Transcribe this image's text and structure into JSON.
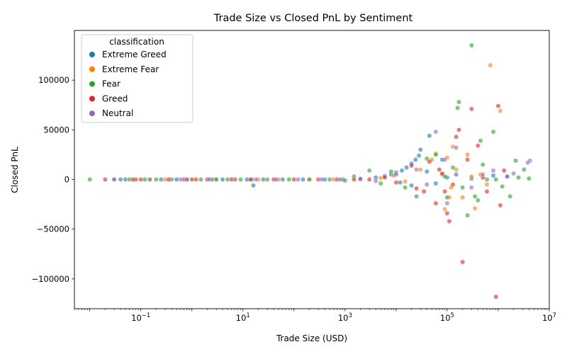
{
  "chart_data": {
    "type": "scatter",
    "title": "Trade Size vs Closed PnL by Sentiment",
    "xlabel": "Trade Size (USD)",
    "ylabel": "Closed PnL",
    "xscale": "log",
    "xlim": [
      0.005,
      10000000
    ],
    "ylim": [
      -130000,
      150000
    ],
    "x_ticks": [
      {
        "value": 0.1,
        "base": "10",
        "exp": "−1"
      },
      {
        "value": 10,
        "base": "10",
        "exp": "1"
      },
      {
        "value": 1000,
        "base": "10",
        "exp": "3"
      },
      {
        "value": 100000,
        "base": "10",
        "exp": "5"
      },
      {
        "value": 10000000,
        "base": "10",
        "exp": "7"
      }
    ],
    "y_ticks": [
      {
        "value": 100000,
        "label": "100000"
      },
      {
        "value": 50000,
        "label": "50000"
      },
      {
        "value": 0,
        "label": "0"
      },
      {
        "value": -50000,
        "label": "−50000"
      },
      {
        "value": -100000,
        "label": "−100000"
      }
    ],
    "grid": false,
    "legend": {
      "title": "classification",
      "position": "top-left"
    },
    "series": [
      {
        "name": "Extreme Greed",
        "color": "#1f77b4",
        "points": [
          [
            0.04,
            0
          ],
          [
            0.05,
            0
          ],
          [
            0.08,
            0
          ],
          [
            0.25,
            0
          ],
          [
            0.5,
            0
          ],
          [
            1,
            0
          ],
          [
            2.5,
            0
          ],
          [
            4,
            0
          ],
          [
            12,
            0
          ],
          [
            16,
            -6000
          ],
          [
            25,
            0
          ],
          [
            60,
            0
          ],
          [
            150,
            0
          ],
          [
            400,
            0
          ],
          [
            900,
            0
          ],
          [
            2000,
            1000
          ],
          [
            4000,
            2000
          ],
          [
            6000,
            3500
          ],
          [
            8000,
            5000
          ],
          [
            10000,
            7000
          ],
          [
            13000,
            9000
          ],
          [
            16000,
            12000
          ],
          [
            20000,
            16000
          ],
          [
            24000,
            20000
          ],
          [
            28000,
            24000
          ],
          [
            30000,
            30000
          ],
          [
            45000,
            44000
          ],
          [
            12000,
            -3000
          ],
          [
            20000,
            -6000
          ],
          [
            40000,
            8000
          ],
          [
            60000,
            -4000
          ],
          [
            80000,
            20000
          ],
          [
            100000,
            2000
          ],
          [
            150000,
            5000
          ],
          [
            300000,
            1000
          ],
          [
            800000,
            4000
          ],
          [
            1500000,
            3000
          ]
        ]
      },
      {
        "name": "Extreme Fear",
        "color": "#ff7f0e",
        "points": [
          [
            0.08,
            0
          ],
          [
            0.15,
            0
          ],
          [
            0.3,
            0
          ],
          [
            1,
            0
          ],
          [
            3,
            0
          ],
          [
            6,
            0
          ],
          [
            20,
            0
          ],
          [
            50,
            0
          ],
          [
            200,
            0
          ],
          [
            600,
            0
          ],
          [
            2000,
            0
          ],
          [
            5000,
            1500
          ],
          [
            9000,
            4000
          ],
          [
            15000,
            -2000
          ],
          [
            30000,
            10000
          ],
          [
            50000,
            20000
          ],
          [
            60000,
            26000
          ],
          [
            90000,
            -30000
          ],
          [
            100000,
            22000
          ],
          [
            110000,
            -18000
          ],
          [
            130000,
            33000
          ],
          [
            150000,
            10000
          ],
          [
            200000,
            -18000
          ],
          [
            250000,
            25000
          ],
          [
            350000,
            -29000
          ],
          [
            450000,
            5000
          ],
          [
            700000,
            115000
          ],
          [
            1100000,
            69000
          ],
          [
            80000,
            5000
          ],
          [
            120000,
            -8000
          ],
          [
            300000,
            3000
          ],
          [
            600000,
            -5000
          ]
        ]
      },
      {
        "name": "Fear",
        "color": "#2ca02c",
        "points": [
          [
            0.01,
            0
          ],
          [
            0.03,
            0
          ],
          [
            0.06,
            0
          ],
          [
            0.12,
            0
          ],
          [
            0.2,
            0
          ],
          [
            0.4,
            0
          ],
          [
            0.8,
            0
          ],
          [
            1.5,
            0
          ],
          [
            3,
            0
          ],
          [
            5,
            0
          ],
          [
            9,
            0
          ],
          [
            15,
            0
          ],
          [
            30,
            0
          ],
          [
            80,
            0
          ],
          [
            200,
            0
          ],
          [
            500,
            0
          ],
          [
            1000,
            -1000
          ],
          [
            1500,
            3000
          ],
          [
            3000,
            9000
          ],
          [
            5000,
            -4000
          ],
          [
            8000,
            8000
          ],
          [
            15000,
            -8000
          ],
          [
            25000,
            -17000
          ],
          [
            40000,
            21000
          ],
          [
            60000,
            25000
          ],
          [
            90000,
            3000
          ],
          [
            100000,
            -18000
          ],
          [
            130000,
            12000
          ],
          [
            160000,
            72000
          ],
          [
            170000,
            78000
          ],
          [
            200000,
            -8000
          ],
          [
            250000,
            -36000
          ],
          [
            300000,
            135000
          ],
          [
            350000,
            -17000
          ],
          [
            400000,
            -21000
          ],
          [
            450000,
            39000
          ],
          [
            500000,
            15000
          ],
          [
            800000,
            48000
          ],
          [
            1200000,
            -7000
          ],
          [
            1700000,
            -17000
          ],
          [
            2200000,
            19000
          ],
          [
            3200000,
            10000
          ],
          [
            4000000,
            1000
          ],
          [
            600000,
            0
          ],
          [
            900000,
            0
          ],
          [
            2500000,
            2000
          ]
        ]
      },
      {
        "name": "Greed",
        "color": "#d62728",
        "points": [
          [
            0.02,
            0
          ],
          [
            0.07,
            0
          ],
          [
            0.1,
            0
          ],
          [
            0.35,
            0
          ],
          [
            0.7,
            0
          ],
          [
            1.2,
            0
          ],
          [
            2,
            0
          ],
          [
            7,
            0
          ],
          [
            14,
            0
          ],
          [
            40,
            0
          ],
          [
            100,
            0
          ],
          [
            300,
            0
          ],
          [
            700,
            0
          ],
          [
            1500,
            0
          ],
          [
            3000,
            0
          ],
          [
            6000,
            2000
          ],
          [
            10000,
            -3000
          ],
          [
            20000,
            14000
          ],
          [
            25000,
            -9000
          ],
          [
            35000,
            -12000
          ],
          [
            45000,
            18000
          ],
          [
            60000,
            -24000
          ],
          [
            70000,
            10000
          ],
          [
            90000,
            -12000
          ],
          [
            100000,
            -34000
          ],
          [
            110000,
            -42000
          ],
          [
            150000,
            43000
          ],
          [
            170000,
            50000
          ],
          [
            200000,
            -83000
          ],
          [
            250000,
            20000
          ],
          [
            300000,
            71000
          ],
          [
            400000,
            34000
          ],
          [
            600000,
            -12000
          ],
          [
            900000,
            -118000
          ],
          [
            1000000,
            74000
          ],
          [
            1100000,
            -26000
          ],
          [
            1300000,
            9000
          ],
          [
            80000,
            6000
          ],
          [
            130000,
            -5000
          ],
          [
            500000,
            2000
          ]
        ]
      },
      {
        "name": "Neutral",
        "color": "#9467bd",
        "points": [
          [
            0.03,
            0
          ],
          [
            0.15,
            0
          ],
          [
            0.6,
            0
          ],
          [
            0.8,
            0
          ],
          [
            2.2,
            0
          ],
          [
            6,
            0
          ],
          [
            18,
            0
          ],
          [
            45,
            0
          ],
          [
            120,
            0
          ],
          [
            350,
            0
          ],
          [
            800,
            0
          ],
          [
            2000,
            500
          ],
          [
            4000,
            -1500
          ],
          [
            10000,
            5000
          ],
          [
            25000,
            10000
          ],
          [
            40000,
            -5000
          ],
          [
            60000,
            48000
          ],
          [
            90000,
            20000
          ],
          [
            100000,
            -24000
          ],
          [
            150000,
            32000
          ],
          [
            300000,
            -8000
          ],
          [
            500000,
            5000
          ],
          [
            800000,
            9000
          ],
          [
            1500000,
            3000
          ],
          [
            2000000,
            6000
          ],
          [
            4200000,
            19000
          ],
          [
            3800000,
            17000
          ]
        ]
      }
    ]
  }
}
